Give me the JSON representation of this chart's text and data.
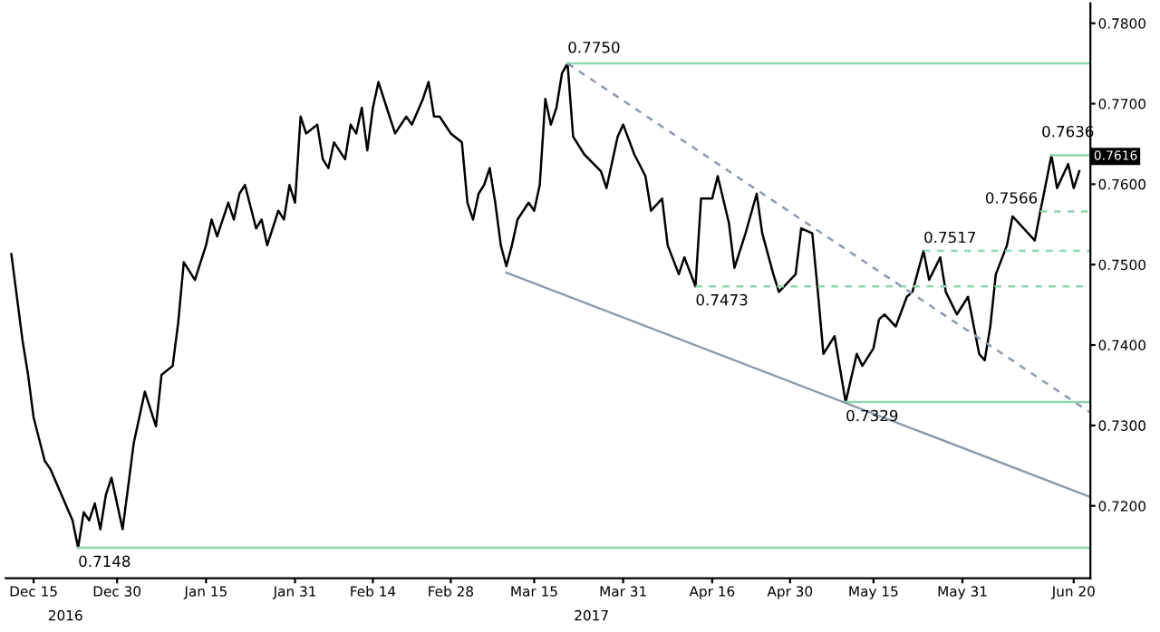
{
  "chart_data": {
    "type": "line",
    "xlim": [
      "2016-12-10",
      "2017-06-23"
    ],
    "xticks": [
      {
        "value": "2016-12-15",
        "label": "Dec 15"
      },
      {
        "value": "2016-12-30",
        "label": "Dec 30"
      },
      {
        "value": "2017-01-15",
        "label": "Jan 15"
      },
      {
        "value": "2017-01-31",
        "label": "Jan 31"
      },
      {
        "value": "2017-02-14",
        "label": "Feb 14"
      },
      {
        "value": "2017-02-28",
        "label": "Feb 28"
      },
      {
        "value": "2017-03-15",
        "label": "Mar 15"
      },
      {
        "value": "2017-03-31",
        "label": "Mar 31"
      },
      {
        "value": "2017-04-16",
        "label": "Apr 16"
      },
      {
        "value": "2017-04-30",
        "label": "Apr 30"
      },
      {
        "value": "2017-05-15",
        "label": "May 15"
      },
      {
        "value": "2017-05-31",
        "label": "May 31"
      },
      {
        "value": "2017-06-20",
        "label": "Jun 20"
      }
    ],
    "ylim": [
      0.711,
      0.7825
    ],
    "yticks": [
      {
        "value": 0.72,
        "label": "0.7200"
      },
      {
        "value": 0.73,
        "label": "0.7300"
      },
      {
        "value": 0.74,
        "label": "0.7400"
      },
      {
        "value": 0.75,
        "label": "0.7500"
      },
      {
        "value": 0.76,
        "label": "0.7600"
      },
      {
        "value": 0.77,
        "label": "0.7700"
      },
      {
        "value": 0.78,
        "label": "0.7800"
      }
    ],
    "grid": false,
    "legend": false,
    "marker": "none",
    "series": [
      {
        "color": "#000000",
        "line_style": "solid",
        "x": [
          "2016-12-11",
          "2016-12-13",
          "2016-12-14",
          "2016-12-15",
          "2016-12-17",
          "2016-12-18",
          "2016-12-20",
          "2016-12-22",
          "2016-12-23",
          "2016-12-24",
          "2016-12-25",
          "2016-12-26",
          "2016-12-27",
          "2016-12-28",
          "2016-12-29",
          "2016-12-31",
          "2017-01-01",
          "2017-01-02",
          "2017-01-04",
          "2017-01-06",
          "2017-01-07",
          "2017-01-09",
          "2017-01-10",
          "2017-01-11",
          "2017-01-12",
          "2017-01-13",
          "2017-01-15",
          "2017-01-16",
          "2017-01-17",
          "2017-01-19",
          "2017-01-20",
          "2017-01-21",
          "2017-01-22",
          "2017-01-24",
          "2017-01-25",
          "2017-01-26",
          "2017-01-28",
          "2017-01-29",
          "2017-01-30",
          "2017-01-31",
          "2017-02-01",
          "2017-02-02",
          "2017-02-04",
          "2017-02-05",
          "2017-02-06",
          "2017-02-07",
          "2017-02-09",
          "2017-02-10",
          "2017-02-11",
          "2017-02-12",
          "2017-02-13",
          "2017-02-14",
          "2017-02-15",
          "2017-02-17",
          "2017-02-18",
          "2017-02-20",
          "2017-02-21",
          "2017-02-23",
          "2017-02-24",
          "2017-02-25",
          "2017-02-26",
          "2017-02-28",
          "2017-03-02",
          "2017-03-03",
          "2017-03-04",
          "2017-03-05",
          "2017-03-06",
          "2017-03-07",
          "2017-03-08",
          "2017-03-09",
          "2017-03-10",
          "2017-03-11",
          "2017-03-12",
          "2017-03-14",
          "2017-03-15",
          "2017-03-16",
          "2017-03-17",
          "2017-03-18",
          "2017-03-19",
          "2017-03-20",
          "2017-03-21",
          "2017-03-22",
          "2017-03-24",
          "2017-03-27",
          "2017-03-28",
          "2017-03-30",
          "2017-03-31",
          "2017-04-02",
          "2017-04-04",
          "2017-04-05",
          "2017-04-07",
          "2017-04-08",
          "2017-04-10",
          "2017-04-11",
          "2017-04-13",
          "2017-04-14",
          "2017-04-16",
          "2017-04-17",
          "2017-04-19",
          "2017-04-20",
          "2017-04-22",
          "2017-04-24",
          "2017-04-25",
          "2017-04-27",
          "2017-04-28",
          "2017-05-01",
          "2017-05-02",
          "2017-05-04",
          "2017-05-05",
          "2017-05-06",
          "2017-05-08",
          "2017-05-10",
          "2017-05-12",
          "2017-05-13",
          "2017-05-15",
          "2017-05-16",
          "2017-05-17",
          "2017-05-19",
          "2017-05-21",
          "2017-05-22",
          "2017-05-24",
          "2017-05-25",
          "2017-05-27",
          "2017-05-28",
          "2017-05-30",
          "2017-06-01",
          "2017-06-03",
          "2017-06-04",
          "2017-06-05",
          "2017-06-06",
          "2017-06-08",
          "2017-06-09",
          "2017-06-11",
          "2017-06-13",
          "2017-06-14",
          "2017-06-16",
          "2017-06-17",
          "2017-06-19",
          "2017-06-20",
          "2017-06-21"
        ],
        "values": [
          0.7513,
          0.7406,
          0.7363,
          0.731,
          0.7256,
          0.7246,
          0.7214,
          0.7182,
          0.7148,
          0.7192,
          0.7182,
          0.7203,
          0.7171,
          0.7214,
          0.7235,
          0.7171,
          0.7224,
          0.7278,
          0.7342,
          0.7299,
          0.7363,
          0.7374,
          0.7428,
          0.7503,
          0.7492,
          0.7481,
          0.7524,
          0.7556,
          0.7535,
          0.7577,
          0.7556,
          0.7588,
          0.7599,
          0.7545,
          0.7556,
          0.7524,
          0.7567,
          0.7556,
          0.7599,
          0.7577,
          0.7684,
          0.7663,
          0.7674,
          0.7631,
          0.762,
          0.7652,
          0.7631,
          0.7674,
          0.7663,
          0.7695,
          0.7642,
          0.7695,
          0.7727,
          0.7684,
          0.7663,
          0.7684,
          0.7674,
          0.7706,
          0.7727,
          0.7684,
          0.7684,
          0.7663,
          0.7652,
          0.7577,
          0.7556,
          0.7588,
          0.7599,
          0.762,
          0.7577,
          0.7524,
          0.7498,
          0.7524,
          0.7556,
          0.7577,
          0.7567,
          0.7599,
          0.7706,
          0.7674,
          0.7695,
          0.7738,
          0.775,
          0.7659,
          0.7637,
          0.7616,
          0.7595,
          0.7659,
          0.7674,
          0.7637,
          0.761,
          0.7567,
          0.7582,
          0.7524,
          0.7488,
          0.7509,
          0.7473,
          0.7582,
          0.7582,
          0.761,
          0.7552,
          0.7496,
          0.7539,
          0.7588,
          0.7539,
          0.7488,
          0.7466,
          0.7488,
          0.7545,
          0.7539,
          0.7466,
          0.7389,
          0.7411,
          0.7329,
          0.7389,
          0.7374,
          0.7396,
          0.7432,
          0.7438,
          0.7423,
          0.746,
          0.7466,
          0.7517,
          0.7481,
          0.7509,
          0.7466,
          0.7438,
          0.746,
          0.7389,
          0.7381,
          0.7423,
          0.7488,
          0.7524,
          0.756,
          0.7545,
          0.753,
          0.7566,
          0.7636,
          0.7595,
          0.7625,
          0.7595,
          0.7616
        ]
      },
      {
        "color": "#8fd6b0",
        "line_style": "solid",
        "x": [
          "2017-03-21",
          "2017-06-23"
        ],
        "values": [
          0.775,
          0.775
        ]
      },
      {
        "color": "#8fd6b0",
        "line_style": "solid",
        "x": [
          "2017-06-16",
          "2017-06-23"
        ],
        "values": [
          0.7636,
          0.7636
        ]
      },
      {
        "color": "#8fd6b0",
        "line_style": "dashed",
        "x": [
          "2017-06-14",
          "2017-06-23"
        ],
        "values": [
          0.7566,
          0.7566
        ]
      },
      {
        "color": "#8fd6b0",
        "line_style": "dashed",
        "x": [
          "2017-05-24",
          "2017-06-23"
        ],
        "values": [
          0.7517,
          0.7517
        ]
      },
      {
        "color": "#8fd6b0",
        "line_style": "dashed",
        "x": [
          "2017-04-13",
          "2017-06-23"
        ],
        "values": [
          0.7473,
          0.7473
        ]
      },
      {
        "color": "#8fd6b0",
        "line_style": "solid",
        "x": [
          "2017-05-10",
          "2017-06-23"
        ],
        "values": [
          0.7329,
          0.7329
        ]
      },
      {
        "color": "#8fd6b0",
        "line_style": "solid",
        "x": [
          "2016-12-23",
          "2017-06-23"
        ],
        "values": [
          0.7148,
          0.7148
        ]
      },
      {
        "color": "#8c9aab",
        "line_style": "dashed",
        "x": [
          "2017-03-21",
          "2017-06-23"
        ],
        "values": [
          0.775,
          0.7316
        ]
      },
      {
        "color": "#8c9aab",
        "line_style": "solid",
        "x": [
          "2017-03-10",
          "2017-06-23"
        ],
        "values": [
          0.749,
          0.7211
        ]
      }
    ],
    "annotations": [
      {
        "text": "0.7750",
        "x": "2017-03-21",
        "y": 0.775
      },
      {
        "text": "0.7473",
        "x": "2017-04-13",
        "y": 0.7473
      },
      {
        "text": "0.7329",
        "x": "2017-05-10",
        "y": 0.7329
      },
      {
        "text": "0.7148",
        "x": "2016-12-23",
        "y": 0.7148
      },
      {
        "text": "0.7517",
        "x": "2017-05-24",
        "y": 0.7517
      },
      {
        "text": "0.7566",
        "x": "2017-06-14",
        "y": 0.7566
      },
      {
        "text": "0.7636",
        "x": "2017-06-16",
        "y": 0.7636
      },
      "0.7616",
      "2016",
      "2017"
    ]
  }
}
